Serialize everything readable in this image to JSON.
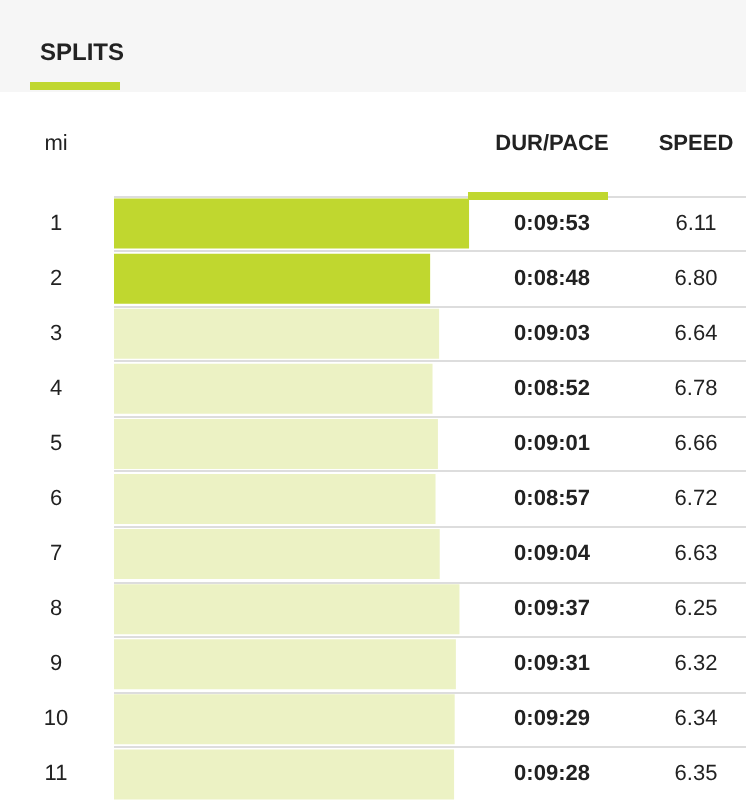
{
  "chart_data": {
    "type": "bar",
    "orientation": "horizontal",
    "title": "SPLITS",
    "ylabel": "mi",
    "xlabel": "DUR/PACE",
    "categories": [
      "1",
      "2",
      "3",
      "4",
      "5",
      "6",
      "7",
      "8",
      "9",
      "10",
      "11"
    ],
    "values": [
      593,
      528,
      543,
      532,
      541,
      537,
      544,
      577,
      571,
      569,
      568
    ],
    "value_labels": [
      "0:09:53",
      "0:08:48",
      "0:09:03",
      "0:08:52",
      "0:09:01",
      "0:08:57",
      "0:09:04",
      "0:09:37",
      "0:09:31",
      "0:09:29",
      "0:09:28"
    ],
    "colors": [
      "#c0d72f",
      "#c0d72f",
      "#ecf2c4",
      "#ecf2c4",
      "#ecf2c4",
      "#ecf2c4",
      "#ecf2c4",
      "#ecf2c4",
      "#ecf2c4",
      "#ecf2c4",
      "#ecf2c4"
    ],
    "grid": "y",
    "annotations": [
      "SPEED",
      "6.11",
      "6.80",
      "6.64",
      "6.78",
      "6.66",
      "6.72",
      "6.63",
      "6.25",
      "6.32",
      "6.34",
      "6.35"
    ]
  }
}
